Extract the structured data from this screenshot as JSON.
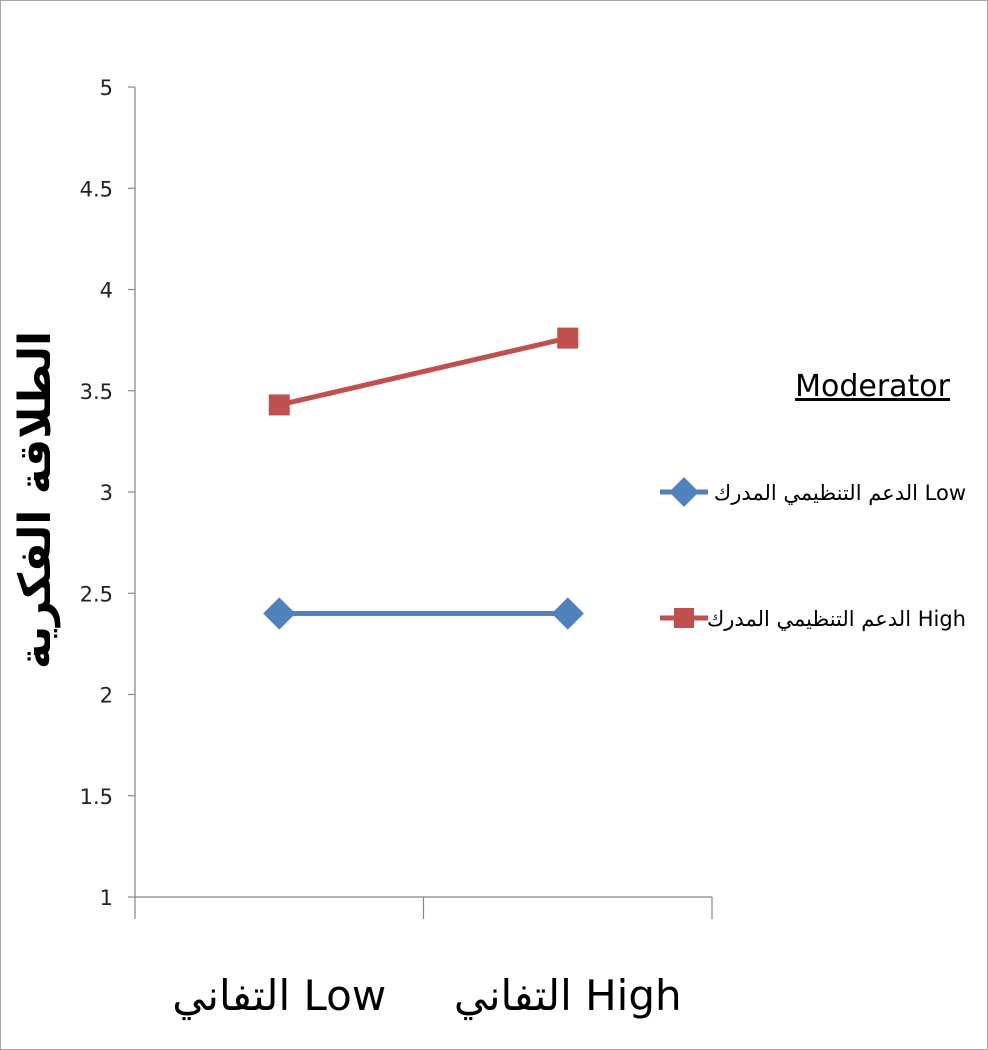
{
  "chart_data": {
    "type": "line",
    "title": "",
    "xlabel": "",
    "ylabel": "الطلاقة الفكرية",
    "categories": [
      "التفاني Low",
      "التفاني High"
    ],
    "ylim": [
      1,
      5
    ],
    "yticks": [
      "1",
      "1.5",
      "2",
      "2.5",
      "3",
      "3.5",
      "4",
      "4.5",
      "5"
    ],
    "grid": false,
    "legend_title": "Moderator",
    "legend_position": "right",
    "series": [
      {
        "name": "الدعم التنظيمي المدرك Low",
        "values": [
          2.4,
          2.4
        ],
        "color": "#4f81bd",
        "marker": "diamond"
      },
      {
        "name": "الدعم التنظيمي المدرك High",
        "values": [
          3.43,
          3.76
        ],
        "color": "#c0504d",
        "marker": "square"
      }
    ]
  }
}
